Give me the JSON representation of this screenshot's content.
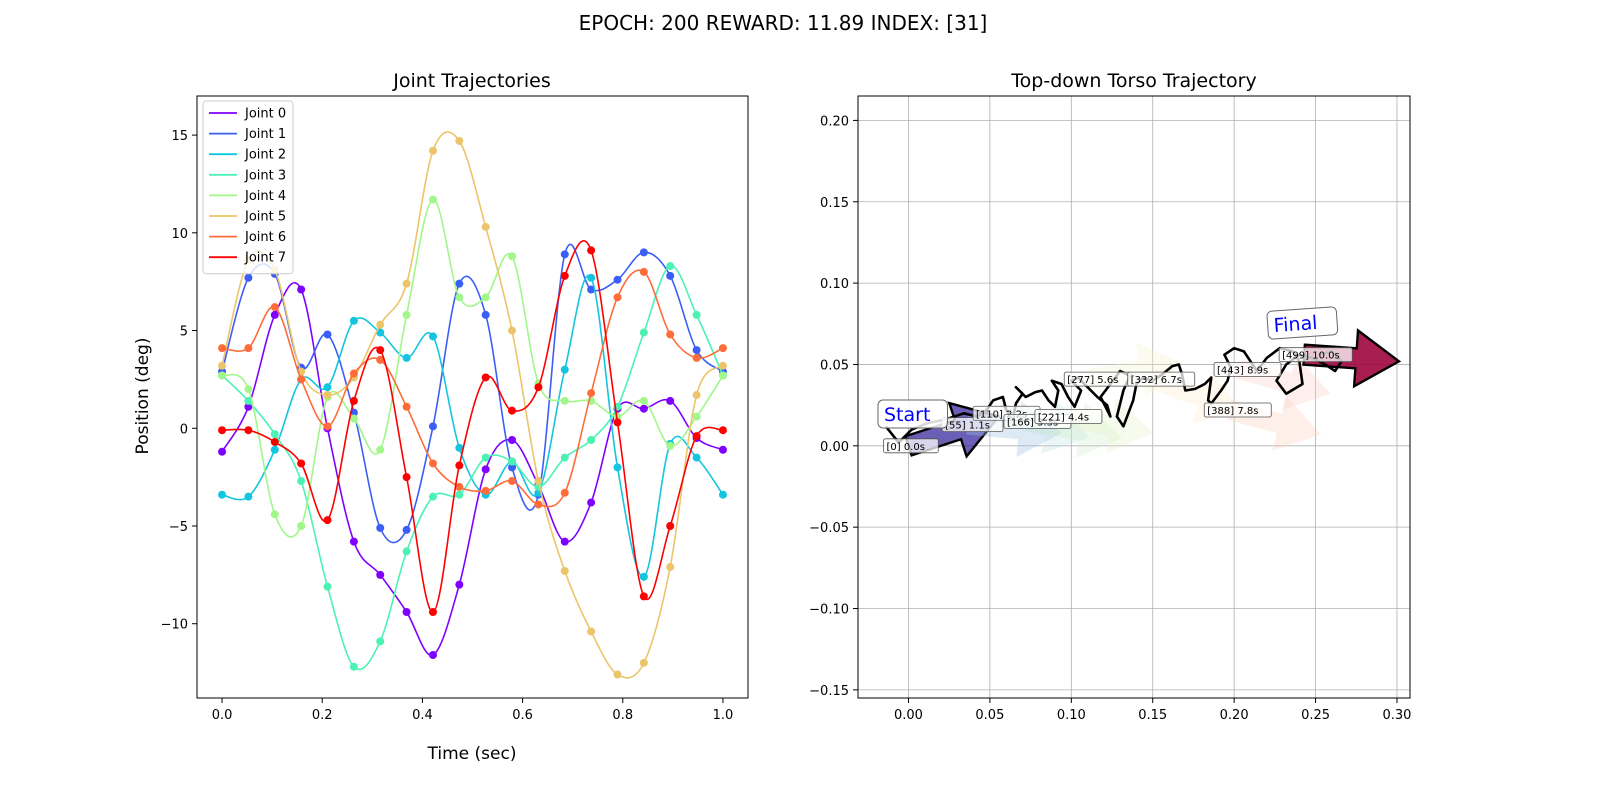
{
  "suptitle": "EPOCH: 200 REWARD:  11.89 INDEX: [31]",
  "chart_data": [
    {
      "type": "line",
      "title": "Joint Trajectories",
      "xlabel": "Time (sec)",
      "ylabel": "Position (deg)",
      "xlim": [
        -0.05,
        1.05
      ],
      "ylim": [
        -13.8,
        17.0
      ],
      "xticks": [
        "0.0",
        "0.2",
        "0.4",
        "0.6",
        "0.8",
        "1.0"
      ],
      "yticks": [
        "−10",
        "−5",
        "0",
        "5",
        "10",
        "15"
      ],
      "grid": false,
      "legend_position": "top-left",
      "x": [
        0.0,
        0.0526,
        0.1053,
        0.1579,
        0.2105,
        0.2632,
        0.3158,
        0.3684,
        0.4211,
        0.4737,
        0.5263,
        0.5789,
        0.6316,
        0.6842,
        0.7368,
        0.7895,
        0.8421,
        0.8947,
        0.9474,
        1.0
      ],
      "series": [
        {
          "name": "Joint 0",
          "color": "#8000ff",
          "values": [
            -1.2,
            1.1,
            5.8,
            7.1,
            0.0,
            -5.8,
            -7.5,
            -9.4,
            -11.6,
            -8.0,
            -2.1,
            -0.6,
            -2.9,
            -5.8,
            -3.8,
            1.0,
            1.0,
            1.4,
            -0.5,
            -1.1
          ]
        },
        {
          "name": "Joint 1",
          "color": "#3b5ff6",
          "values": [
            2.9,
            7.7,
            7.9,
            3.1,
            4.8,
            0.8,
            -5.1,
            -5.2,
            0.1,
            7.4,
            5.8,
            -2.0,
            -3.4,
            8.9,
            7.1,
            7.6,
            9.0,
            7.8,
            4.0,
            2.9
          ]
        },
        {
          "name": "Joint 2",
          "color": "#13c5de",
          "values": [
            -3.4,
            -3.5,
            -1.1,
            2.5,
            2.1,
            5.5,
            4.9,
            3.6,
            4.7,
            -1.0,
            -3.4,
            -1.7,
            -3.3,
            3.0,
            7.7,
            -2.0,
            -7.6,
            -0.8,
            -1.5,
            -3.4
          ]
        },
        {
          "name": "Joint 3",
          "color": "#4cf2b4",
          "values": [
            2.7,
            1.4,
            -0.3,
            -2.7,
            -8.1,
            -12.2,
            -10.9,
            -6.3,
            -3.5,
            -3.4,
            -1.5,
            -1.7,
            -3.0,
            -1.5,
            -0.6,
            1.1,
            4.9,
            8.3,
            5.8,
            2.7
          ]
        },
        {
          "name": "Joint 4",
          "color": "#a1f78a",
          "values": [
            2.7,
            2.0,
            -4.4,
            -5.0,
            1.6,
            0.5,
            -1.1,
            5.8,
            11.7,
            6.7,
            6.7,
            8.8,
            2.3,
            1.4,
            1.4,
            0.6,
            1.4,
            -0.9,
            0.6,
            2.7
          ]
        },
        {
          "name": "Joint 5",
          "color": "#ecc56a",
          "values": [
            3.2,
            8.6,
            8.1,
            2.9,
            1.7,
            2.6,
            5.3,
            7.4,
            14.2,
            14.7,
            10.3,
            5.0,
            -2.7,
            -7.3,
            -10.4,
            -12.6,
            -12.0,
            -7.1,
            1.7,
            3.2
          ]
        },
        {
          "name": "Joint 6",
          "color": "#ff6c39",
          "values": [
            4.1,
            4.1,
            6.2,
            2.5,
            0.1,
            2.8,
            3.5,
            1.1,
            -1.8,
            -3.0,
            -3.2,
            -2.7,
            -3.9,
            -3.3,
            1.8,
            6.7,
            8.0,
            4.8,
            3.6,
            4.1
          ]
        },
        {
          "name": "Joint 7",
          "color": "#ff0000",
          "values": [
            -0.1,
            -0.1,
            -0.7,
            -1.8,
            -4.7,
            1.4,
            4.0,
            -2.5,
            -9.4,
            -1.9,
            2.6,
            0.9,
            2.1,
            7.8,
            9.1,
            0.3,
            -8.6,
            -5.0,
            -0.4,
            -0.1
          ]
        }
      ]
    },
    {
      "type": "scatter",
      "title": "Top-down Torso Trajectory",
      "xlim": [
        -0.031,
        0.308
      ],
      "ylim": [
        -0.155,
        0.215
      ],
      "xticks": [
        "0.00",
        "0.05",
        "0.10",
        "0.15",
        "0.20",
        "0.25",
        "0.30"
      ],
      "yticks": [
        "−0.15",
        "−0.10",
        "−0.05",
        "0.00",
        "0.05",
        "0.10",
        "0.15",
        "0.20"
      ],
      "grid": true,
      "start_label": "Start",
      "final_label": "Final",
      "waypoints": [
        {
          "label": "[0] 0.0s",
          "x": 0.0,
          "y": 0.0,
          "dir": -18,
          "color": "#3a2a9c",
          "alpha": 0.75
        },
        {
          "label": "[55] 1.1s",
          "x": 0.036,
          "y": 0.013,
          "dir": 5,
          "color": "#9ec3e6",
          "alpha": 0.35
        },
        {
          "label": "[110] 2.2s",
          "x": 0.055,
          "y": 0.02,
          "dir": 15,
          "color": "#b8e2dd",
          "alpha": 0.3
        },
        {
          "label": "[166] 3.3s",
          "x": 0.074,
          "y": 0.015,
          "dir": 10,
          "color": "#cdecc8",
          "alpha": 0.3
        },
        {
          "label": "[221] 4.4s",
          "x": 0.093,
          "y": 0.018,
          "dir": 10,
          "color": "#e4f2c4",
          "alpha": 0.3
        },
        {
          "label": "[277] 5.6s",
          "x": 0.111,
          "y": 0.041,
          "dir": -10,
          "color": "#f4f3cd",
          "alpha": 0.3
        },
        {
          "label": "[332] 6.7s",
          "x": 0.15,
          "y": 0.041,
          "dir": 20,
          "color": "#fbe8c3",
          "alpha": 0.3
        },
        {
          "label": "[388] 7.8s",
          "x": 0.197,
          "y": 0.022,
          "dir": 15,
          "color": "#fcd4c0",
          "alpha": 0.35
        },
        {
          "label": "[443] 8.9s",
          "x": 0.203,
          "y": 0.047,
          "dir": 15,
          "color": "#fbc9c0",
          "alpha": 0.3
        },
        {
          "label": "[499] 10.0s",
          "x": 0.243,
          "y": 0.056,
          "dir": 4,
          "color": "#a0063e",
          "alpha": 0.9
        }
      ],
      "path_x": [
        -0.014,
        -0.006,
        0.002,
        0.012,
        0.022,
        0.034,
        0.042,
        0.048,
        0.052,
        0.058,
        0.06,
        0.064,
        0.066,
        0.07,
        0.066,
        0.072,
        0.078,
        0.082,
        0.086,
        0.09,
        0.092,
        0.088,
        0.094,
        0.098,
        0.102,
        0.106,
        0.1,
        0.104,
        0.11,
        0.116,
        0.122,
        0.124,
        0.118,
        0.124,
        0.13,
        0.136,
        0.132,
        0.128,
        0.132,
        0.138,
        0.14,
        0.144,
        0.15,
        0.156,
        0.162,
        0.166,
        0.168,
        0.17,
        0.176,
        0.182,
        0.186,
        0.184,
        0.186,
        0.192,
        0.196,
        0.198,
        0.194,
        0.2,
        0.206,
        0.21,
        0.214,
        0.22,
        0.228,
        0.236,
        0.24,
        0.242,
        0.232,
        0.226,
        0.232,
        0.24,
        0.248,
        0.256,
        0.262,
        0.266,
        0.26,
        0.252
      ],
      "path_y": [
        0.012,
        0.002,
        0.01,
        0.014,
        0.016,
        0.02,
        0.018,
        0.022,
        0.028,
        0.03,
        0.022,
        0.016,
        0.026,
        0.032,
        0.036,
        0.03,
        0.033,
        0.034,
        0.028,
        0.024,
        0.034,
        0.04,
        0.038,
        0.03,
        0.024,
        0.034,
        0.04,
        0.042,
        0.036,
        0.03,
        0.025,
        0.018,
        0.03,
        0.038,
        0.046,
        0.043,
        0.034,
        0.018,
        0.012,
        0.028,
        0.038,
        0.042,
        0.04,
        0.044,
        0.049,
        0.05,
        0.044,
        0.034,
        0.035,
        0.038,
        0.042,
        0.028,
        0.026,
        0.034,
        0.04,
        0.048,
        0.056,
        0.06,
        0.058,
        0.052,
        0.046,
        0.054,
        0.06,
        0.058,
        0.052,
        0.038,
        0.032,
        0.04,
        0.05,
        0.056,
        0.054,
        0.05,
        0.046,
        0.052,
        0.058,
        0.056
      ]
    }
  ]
}
